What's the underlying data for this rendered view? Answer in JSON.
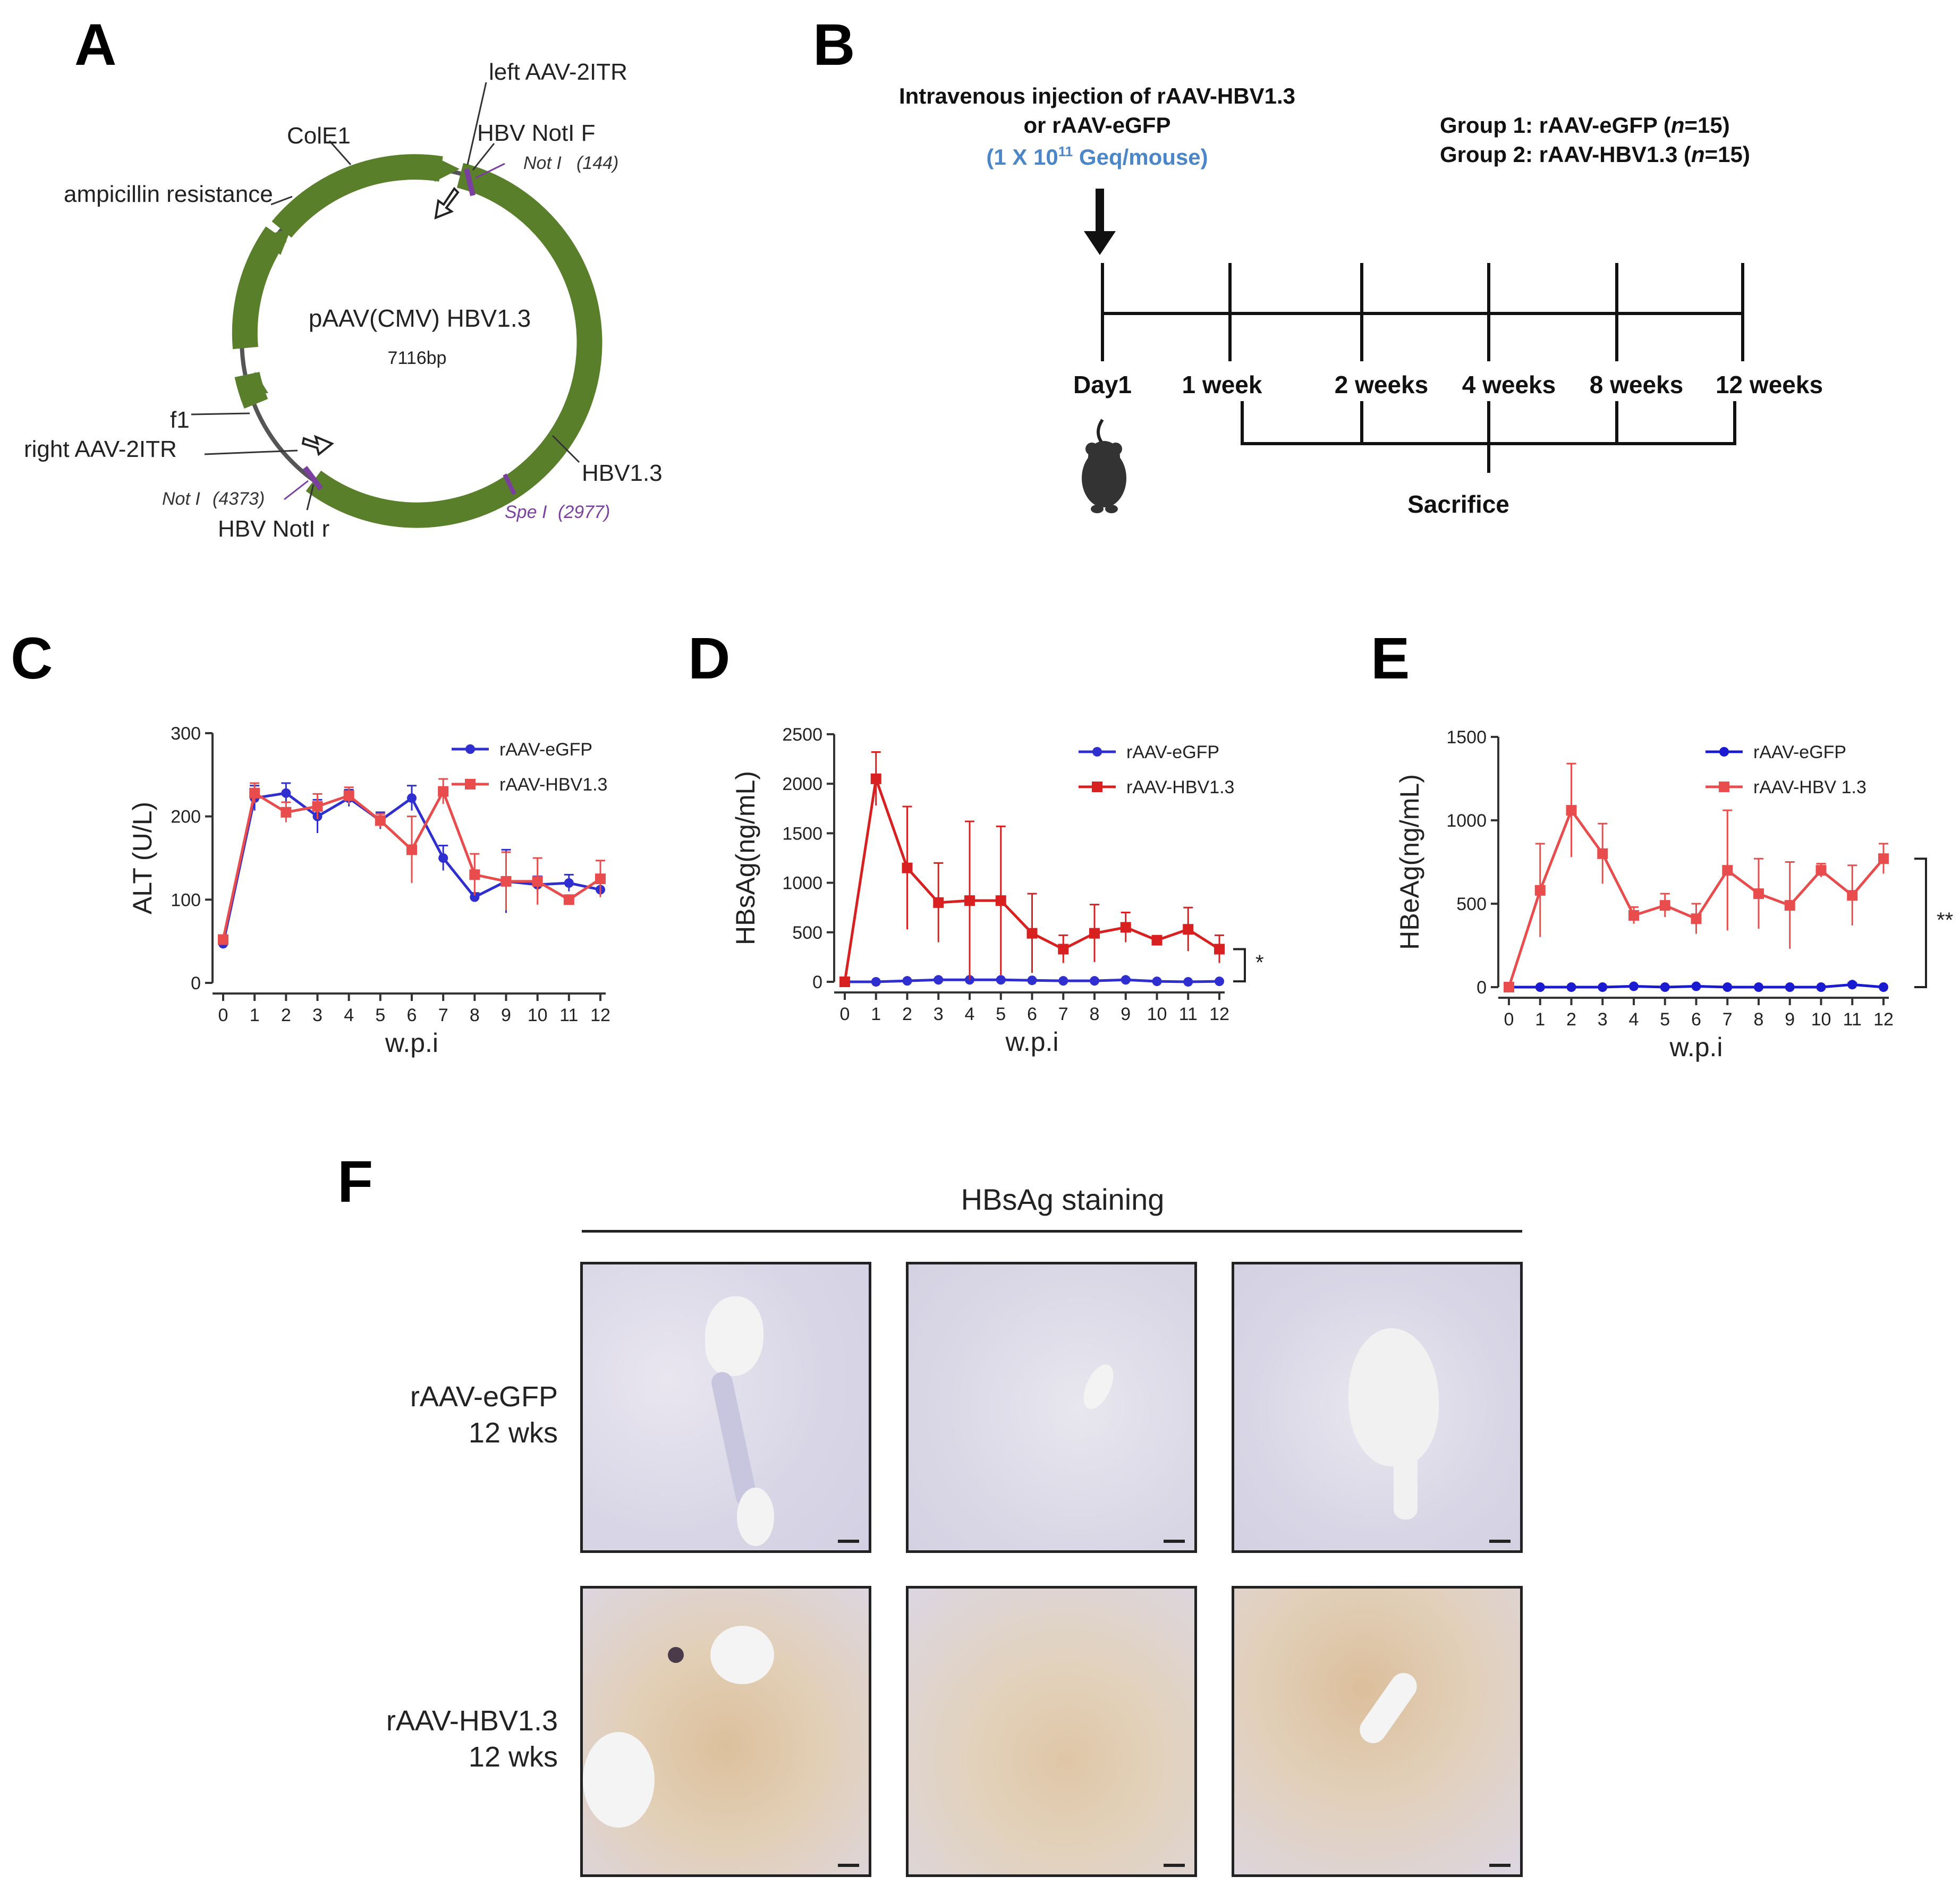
{
  "panels": {
    "A": "A",
    "B": "B",
    "C": "C",
    "D": "D",
    "E": "E",
    "F": "F"
  },
  "plasmid": {
    "name": "pAAV(CMV)  HBV1.3",
    "size": "7116bp",
    "labels": {
      "left_itr": "left AAV-2ITR",
      "hbv_notl_f": "HBV NotI F",
      "notI_144_name": "Not I",
      "notI_144_pos": "(144)",
      "cole1": "ColE1",
      "amp": "ampicillin resistance",
      "f1": "f1",
      "right_itr": "right AAV-2ITR",
      "notI_4373_name": "Not I",
      "notI_4373_pos": "(4373)",
      "hbv_notl_r": "HBV NotI r",
      "hbv13": "HBV1.3",
      "speI_name": "Spe I",
      "speI_pos": "(2977)"
    },
    "colors": {
      "arc": "#5a7f2b",
      "site": "#7b3fa0",
      "backbone": "#555555"
    }
  },
  "timeline": {
    "injection_line1": "Intravenous injection of rAAV-HBV1.3",
    "injection_line2": "or rAAV-eGFP",
    "dose_pre": "(1 X 10",
    "dose_sup": "11",
    "dose_post": " Geq/mouse)",
    "group1_pre": "Group 1: rAAV-eGFP (",
    "group1_n": "n",
    "group1_post": "=15)",
    "group2_pre": "Group 2: rAAV-HBV1.3  (",
    "group2_n": "n",
    "group2_post": "=15)",
    "timepoints": [
      "Day1",
      "1 week",
      "2 weeks",
      "4 weeks",
      "8 weeks",
      "12 weeks"
    ],
    "sacrifice": "Sacrifice",
    "dose_color": "#4a86c8"
  },
  "chart_data": [
    {
      "type": "line",
      "panel": "C",
      "xlabel": "w.p.i",
      "ylabel": "ALT (U/L)",
      "x": [
        0,
        1,
        2,
        3,
        4,
        5,
        6,
        7,
        8,
        9,
        10,
        11,
        12
      ],
      "ylim": [
        0,
        300
      ],
      "yticks": [
        0,
        100,
        200,
        300
      ],
      "series": [
        {
          "name": "rAAV-eGFP",
          "color": "#2f2fd0",
          "marker": "circle",
          "values": [
            47,
            222,
            228,
            200,
            222,
            195,
            222,
            150,
            103,
            122,
            118,
            120,
            112
          ],
          "errors": [
            5,
            15,
            12,
            20,
            10,
            10,
            15,
            15,
            5,
            38,
            10,
            10,
            8
          ]
        },
        {
          "name": "rAAV-HBV1.3",
          "color": "#e84c4c",
          "marker": "square",
          "values": [
            52,
            228,
            205,
            212,
            225,
            195,
            160,
            230,
            130,
            122,
            122,
            100,
            125
          ],
          "errors": [
            5,
            12,
            12,
            15,
            10,
            8,
            40,
            15,
            25,
            35,
            28,
            5,
            22
          ]
        }
      ],
      "annotation": ""
    },
    {
      "type": "line",
      "panel": "D",
      "xlabel": "w.p.i",
      "ylabel": "HBsAg(ng/mL)",
      "x": [
        0,
        1,
        2,
        3,
        4,
        5,
        6,
        7,
        8,
        9,
        10,
        11,
        12
      ],
      "ylim": [
        0,
        2500
      ],
      "yticks": [
        0,
        500,
        1000,
        1500,
        2000,
        2500
      ],
      "series": [
        {
          "name": "rAAV-eGFP",
          "color": "#2f2fd0",
          "marker": "circle",
          "values": [
            0,
            0,
            10,
            20,
            20,
            20,
            15,
            10,
            10,
            20,
            5,
            0,
            5
          ],
          "errors": [
            0,
            0,
            5,
            10,
            10,
            10,
            8,
            5,
            5,
            10,
            3,
            0,
            3
          ]
        },
        {
          "name": "rAAV-HBV1.3",
          "color": "#d82020",
          "marker": "square",
          "values": [
            0,
            2050,
            1150,
            800,
            820,
            820,
            490,
            330,
            490,
            550,
            420,
            530,
            330
          ],
          "errors": [
            0,
            270,
            620,
            400,
            800,
            750,
            400,
            140,
            290,
            150,
            0,
            220,
            140
          ]
        }
      ],
      "annotation": "*"
    },
    {
      "type": "line",
      "panel": "E",
      "xlabel": "w.p.i",
      "ylabel": "HBeAg(ng/mL)",
      "x": [
        0,
        1,
        2,
        3,
        4,
        5,
        6,
        7,
        8,
        9,
        10,
        11,
        12
      ],
      "ylim": [
        0,
        1500
      ],
      "yticks": [
        0,
        500,
        1000,
        1500
      ],
      "series": [
        {
          "name": "rAAV-eGFP",
          "color": "#1a1ad0",
          "marker": "circle",
          "values": [
            0,
            0,
            0,
            0,
            5,
            0,
            5,
            0,
            0,
            0,
            0,
            15,
            0
          ],
          "errors": [
            0,
            0,
            0,
            0,
            3,
            0,
            3,
            0,
            0,
            0,
            0,
            10,
            0
          ]
        },
        {
          "name": "rAAV-HBV 1.3",
          "color": "#e84c4c",
          "marker": "square",
          "values": [
            0,
            580,
            1060,
            800,
            430,
            490,
            410,
            700,
            560,
            490,
            700,
            550,
            770
          ],
          "errors": [
            0,
            280,
            280,
            180,
            50,
            70,
            90,
            360,
            210,
            260,
            40,
            180,
            90
          ]
        }
      ],
      "annotation": "**"
    }
  ],
  "staining": {
    "title": "HBsAg staining",
    "row1_line1": "rAAV-eGFP",
    "row1_line2": "12 wks",
    "row2_line1": "rAAV-HBV1.3",
    "row2_line2": "12 wks"
  }
}
